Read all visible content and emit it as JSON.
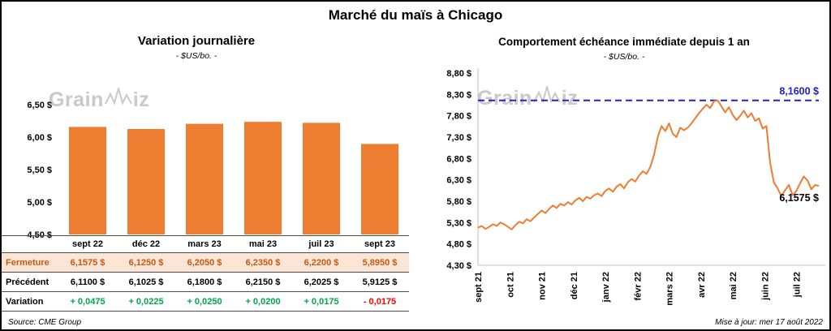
{
  "title": "Marché du maïs à Chicago",
  "watermark": {
    "part1": "Grain",
    "part2": "iz"
  },
  "footer": {
    "source": "Source: CME Group",
    "updated": "Mise à jour: mer 17 août 2022"
  },
  "colors": {
    "accent_orange": "#ED7D31",
    "fermeture_bg": "#FBE5D6",
    "fermeture_text": "#C55A11",
    "positive_green": "#00A550",
    "negative_red": "#FF0000",
    "high_line_blue": "#2020CC",
    "watermark_gray": "#C9C9C9"
  },
  "table": {
    "columns": [
      "sept 22",
      "déc 22",
      "mars 23",
      "mai 23",
      "juil 23",
      "sept 23"
    ],
    "rows": [
      {
        "key": "fermeture",
        "label": "Fermeture",
        "values": [
          "6,1575  $",
          "6,1250  $",
          "6,2050  $",
          "6,2350  $",
          "6,2200  $",
          "5,8950  $"
        ]
      },
      {
        "key": "precedent",
        "label": "Précédent",
        "values": [
          "6,1100  $",
          "6,1025  $",
          "6,1800  $",
          "6,2150  $",
          "6,2025  $",
          "5,9125  $"
        ]
      },
      {
        "key": "variation",
        "label": "Variation",
        "values": [
          "+ 0,0475",
          "+ 0,0225",
          "+ 0,0250",
          "+ 0,0200",
          "+ 0,0175",
          "- 0,0175"
        ]
      }
    ]
  },
  "chart_data": [
    {
      "type": "bar",
      "title": "Variation  journalière",
      "subtitle": "- $US/bo. -",
      "categories": [
        "sept 22",
        "déc 22",
        "mars 23",
        "mai 23",
        "juil 23",
        "sept 23"
      ],
      "values": [
        6.1575,
        6.125,
        6.205,
        6.235,
        6.22,
        5.895
      ],
      "ylim": [
        4.5,
        6.5
      ],
      "yticks": [
        4.5,
        5.0,
        5.5,
        6.0,
        6.5
      ],
      "ytick_labels": [
        "4,50 $",
        "5,00 $",
        "5,50 $",
        "6,00 $",
        "6,50 $"
      ],
      "bar_color": "#ED7D31",
      "grid": false,
      "legend": false
    },
    {
      "type": "line",
      "title": "Comportement  échéance  immédiate  depuis 1 an",
      "subtitle": "- $US/bo. -",
      "x_tick_labels": [
        "sept 21",
        "oct 21",
        "nov 21",
        "déc 21",
        "janv 22",
        "févr 22",
        "mars 22",
        "avr 22",
        "mai 22",
        "juin 22",
        "juil 22"
      ],
      "x_span_months": 10.7,
      "ylim": [
        4.3,
        8.8
      ],
      "yticks": [
        4.3,
        4.8,
        5.3,
        5.8,
        6.3,
        6.8,
        7.3,
        7.8,
        8.3,
        8.8
      ],
      "ytick_labels": [
        "4,30 $",
        "4,80 $",
        "5,30 $",
        "5,80 $",
        "6,30 $",
        "6,80 $",
        "7,30 $",
        "7,80 $",
        "8,30 $",
        "8,80 $"
      ],
      "line_color": "#ED7D31",
      "high_line": {
        "value": 8.16,
        "label": "8,1600 $",
        "color": "#2020CC",
        "style": "dashed"
      },
      "last_label": {
        "value": 6.1575,
        "label": "6,1575 $"
      },
      "values": [
        5.18,
        5.22,
        5.15,
        5.2,
        5.26,
        5.22,
        5.3,
        5.26,
        5.2,
        5.14,
        5.24,
        5.32,
        5.28,
        5.38,
        5.33,
        5.42,
        5.5,
        5.58,
        5.52,
        5.62,
        5.7,
        5.64,
        5.74,
        5.7,
        5.78,
        5.72,
        5.82,
        5.88,
        5.8,
        5.9,
        5.86,
        5.94,
        5.98,
        5.92,
        6.04,
        6.1,
        6.02,
        6.14,
        6.2,
        6.1,
        6.24,
        6.32,
        6.26,
        6.4,
        6.5,
        6.44,
        6.6,
        6.88,
        7.3,
        7.56,
        7.44,
        7.62,
        7.38,
        7.3,
        7.52,
        7.46,
        7.52,
        7.62,
        7.74,
        7.86,
        7.96,
        8.06,
        7.98,
        8.14,
        8.16,
        8.02,
        7.88,
        8.0,
        7.82,
        7.7,
        7.8,
        7.92,
        7.76,
        7.86,
        7.68,
        7.74,
        7.5,
        7.56,
        6.7,
        6.24,
        6.1,
        5.92,
        6.06,
        6.18,
        5.94,
        6.04,
        6.22,
        6.38,
        6.28,
        6.08,
        6.18,
        6.1575
      ],
      "grid": false,
      "legend": false
    }
  ]
}
